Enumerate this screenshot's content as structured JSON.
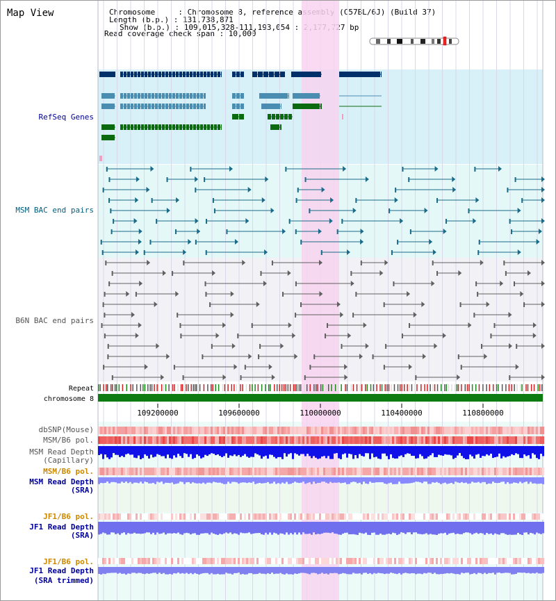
{
  "app": {
    "title": "Map View"
  },
  "header": {
    "lines": [
      "Chromosome     : Chromosome 8, reference assembly (C57BL/6J) (Build 37)",
      "Length (b.p.) : 131,738,871",
      "Show (b.p.) : 109,015,328-111,193,054 : 2,177,727 bp",
      "Read coverage check span : 10,000"
    ]
  },
  "tracks": {
    "refseq": {
      "label": "RefSeq Genes",
      "color": "#000099"
    },
    "msm_bac": {
      "label": "MSM BAC end pairs",
      "color": "#006080"
    },
    "b6n_bac": {
      "label": "B6N BAC end pairs",
      "color": "#555555"
    },
    "repeat": {
      "label": "Repeat"
    },
    "chrom": {
      "label": "chromosome 8"
    },
    "dbsnp": {
      "label": "dbSNP(Mouse)"
    },
    "msm_pol1": {
      "label": "MSM/B6 pol."
    },
    "msm_depth_cap": {
      "label1": "MSM Read Depth",
      "label2": "(Capillary)"
    },
    "msm_pol2": {
      "label": "MSM/B6 pol."
    },
    "msm_depth_sra": {
      "label1": "MSM Read Depth",
      "label2": "(SRA)"
    },
    "jf1_pol1": {
      "label": "JF1/B6 pol."
    },
    "jf1_depth_sra": {
      "label1": "JF1 Read Depth",
      "label2": "(SRA)"
    },
    "jf1_pol2": {
      "label": "JF1/B6 pol."
    },
    "jf1_depth_trim": {
      "label1": "JF1 Read Depth",
      "label2": "(SRA trimmed)"
    }
  },
  "axis": {
    "ticks": [
      "109200000",
      "109600000",
      "110000000",
      "110400000",
      "110800000"
    ],
    "range_start": 109015328,
    "range_end": 111193054
  },
  "colors": {
    "highlight": "#f8d4f0",
    "refseq_bg": "#d8f0f8",
    "msm_bg": "#e4f8f8",
    "b6n_bg": "#f2f2f6",
    "gene_dark": "#00306a",
    "gene_mid": "#4a8db0",
    "gene_green": "#0b6a10",
    "chrom_green": "#0e7a12",
    "orange_label": "#cc8800",
    "blue_label": "#000099"
  }
}
